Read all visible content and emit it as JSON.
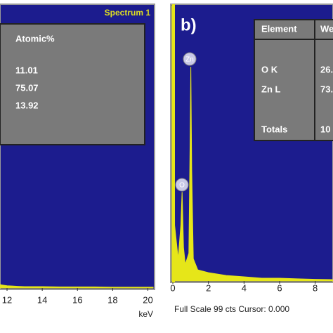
{
  "chart_data": [
    {
      "type": "area",
      "spectrum_label": "Spectrum 1",
      "x_label": "keV",
      "color": "#e6e619",
      "x": [
        11.6,
        11.8,
        12.0,
        12.3,
        12.6,
        13,
        14,
        15,
        16,
        17,
        18,
        19,
        20,
        20.3
      ],
      "values": [
        1.2,
        1.0,
        0.8,
        0.7,
        0.6,
        0.5,
        0.5,
        0.4,
        0.4,
        0.4,
        0.3,
        0.3,
        0.3,
        0.3
      ],
      "xlim": [
        11.6,
        20.3
      ],
      "ylim": [
        0,
        99
      ],
      "xticks": [
        12,
        14,
        16,
        18,
        20
      ],
      "table": {
        "header": [
          "Atomic%"
        ],
        "rows": [
          [
            "11.01"
          ],
          [
            "75.07"
          ],
          [
            "13.92"
          ]
        ]
      }
    },
    {
      "type": "area",
      "label": "b)",
      "footer": "Full Scale 99 cts Cursor: 0.000",
      "color": "#e6e619",
      "annotations": [
        "Zn",
        "O"
      ],
      "x": [
        -0.05,
        0.0,
        0.05,
        0.1,
        0.3,
        0.45,
        0.52,
        0.6,
        0.7,
        0.9,
        0.97,
        1.01,
        1.06,
        1.15,
        1.4,
        2,
        3,
        4,
        5,
        6,
        7,
        8,
        9
      ],
      "values": [
        99,
        99,
        99,
        20,
        8,
        20,
        32,
        12,
        6,
        10,
        50,
        77,
        40,
        8,
        4,
        3,
        2,
        1.5,
        1,
        1,
        0.8,
        0.6,
        0.5
      ],
      "xlim": [
        -0.08,
        9.0
      ],
      "ylim": [
        0,
        99
      ],
      "xticks": [
        0,
        2,
        4,
        6,
        8
      ],
      "table": {
        "header": [
          "Element",
          "We"
        ],
        "rows": [
          [
            "O K",
            "26."
          ],
          [
            "Zn L",
            "73."
          ],
          [
            "Totals",
            "10"
          ]
        ]
      }
    }
  ]
}
